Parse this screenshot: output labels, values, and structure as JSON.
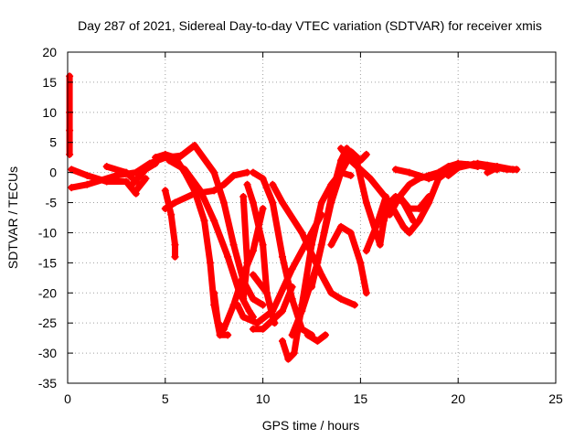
{
  "chart_data": {
    "type": "scatter",
    "title": "Day 287 of 2021, Sidereal Day-to-day VTEC variation (SDTVAR) for receiver xmis",
    "xlabel": "GPS time / hours",
    "ylabel": "SDTVAR / TECUs",
    "xlim": [
      0,
      25
    ],
    "ylim": [
      -35,
      20
    ],
    "xticks": [
      "0",
      "5",
      "10",
      "15",
      "20",
      "25"
    ],
    "yticks": [
      "20",
      "15",
      "10",
      "5",
      "0",
      "-5",
      "-10",
      "-15",
      "-20",
      "-25",
      "-30",
      "-35"
    ],
    "grid": true,
    "marker": "+",
    "color": "#ff0000",
    "series": [
      {
        "name": "arc-1",
        "points": [
          [
            0.1,
            16
          ],
          [
            0.1,
            10
          ],
          [
            0.1,
            7
          ],
          [
            0.1,
            3
          ]
        ]
      },
      {
        "name": "arc-2",
        "points": [
          [
            0.2,
            0.5
          ],
          [
            1.0,
            -0.5
          ],
          [
            2.0,
            -1.5
          ],
          [
            3.0,
            -1.5
          ],
          [
            3.5,
            -3.5
          ]
        ]
      },
      {
        "name": "arc-3",
        "points": [
          [
            0.2,
            -2.5
          ],
          [
            1.0,
            -2
          ],
          [
            2.5,
            -0.5
          ],
          [
            3.5,
            0
          ],
          [
            4.2,
            1.5
          ],
          [
            5.0,
            2.5
          ],
          [
            5.8,
            2.8
          ]
        ]
      },
      {
        "name": "arc-4",
        "points": [
          [
            2.0,
            1
          ],
          [
            3.0,
            0
          ],
          [
            3.5,
            -1.5
          ]
        ]
      },
      {
        "name": "arc-5",
        "points": [
          [
            3.3,
            -2
          ],
          [
            4.0,
            0.5
          ],
          [
            4.5,
            1.5
          ]
        ]
      },
      {
        "name": "arc-6",
        "points": [
          [
            3.5,
            -3
          ],
          [
            4.0,
            -1
          ]
        ]
      },
      {
        "name": "arc-7",
        "points": [
          [
            4.5,
            2.5
          ],
          [
            5.0,
            3
          ],
          [
            5.5,
            2.5
          ],
          [
            6.0,
            0
          ],
          [
            6.5,
            -3
          ],
          [
            7.0,
            -8
          ],
          [
            7.3,
            -15
          ],
          [
            7.5,
            -22
          ],
          [
            7.8,
            -27
          ],
          [
            8.2,
            -27
          ]
        ]
      },
      {
        "name": "arc-8",
        "points": [
          [
            5.2,
            2
          ],
          [
            6.0,
            0.5
          ],
          [
            6.8,
            -3
          ],
          [
            7.5,
            -8
          ],
          [
            8.2,
            -14
          ],
          [
            8.8,
            -20
          ],
          [
            9.3,
            -23
          ],
          [
            9.5,
            -24
          ]
        ]
      },
      {
        "name": "arc-9",
        "points": [
          [
            5.5,
            2
          ],
          [
            6.5,
            4.5
          ],
          [
            7.5,
            0
          ],
          [
            8.0,
            -5
          ],
          [
            8.5,
            -12
          ],
          [
            9.0,
            -18
          ],
          [
            9.5,
            -21
          ],
          [
            10.0,
            -22
          ]
        ]
      },
      {
        "name": "arc-10",
        "points": [
          [
            5.0,
            -6
          ],
          [
            5.5,
            -5
          ],
          [
            6.5,
            -3.5
          ],
          [
            7.5,
            -3
          ],
          [
            8.0,
            -2
          ],
          [
            8.5,
            -0.5
          ],
          [
            9.2,
            0
          ]
        ]
      },
      {
        "name": "arc-11",
        "points": [
          [
            5.0,
            -3
          ],
          [
            5.3,
            -7
          ],
          [
            5.5,
            -12
          ],
          [
            5.5,
            -14
          ]
        ]
      },
      {
        "name": "arc-12",
        "points": [
          [
            7.5,
            -20
          ],
          [
            7.7,
            -25
          ],
          [
            8.0,
            -26
          ],
          [
            8.5,
            -22
          ],
          [
            9.0,
            -17
          ],
          [
            9.5,
            -13
          ],
          [
            10.0,
            -6
          ]
        ]
      },
      {
        "name": "arc-13",
        "points": [
          [
            9.0,
            -4
          ],
          [
            9.2,
            -15
          ],
          [
            9.0,
            -21
          ]
        ]
      },
      {
        "name": "arc-14",
        "points": [
          [
            9.2,
            -2
          ],
          [
            9.5,
            -5
          ],
          [
            10.0,
            -12
          ],
          [
            10.2,
            -20
          ],
          [
            10.5,
            -24
          ],
          [
            10.6,
            -25
          ]
        ]
      },
      {
        "name": "arc-15",
        "points": [
          [
            9.5,
            -17
          ],
          [
            10.2,
            -20
          ]
        ]
      },
      {
        "name": "arc-16",
        "points": [
          [
            9.5,
            0
          ],
          [
            10.0,
            -1
          ],
          [
            10.5,
            -5
          ],
          [
            11.0,
            -14
          ],
          [
            11.5,
            -21
          ],
          [
            12.0,
            -26
          ],
          [
            12.5,
            -27
          ]
        ]
      },
      {
        "name": "arc-17",
        "points": [
          [
            8.7,
            -22
          ],
          [
            9.0,
            -24
          ],
          [
            9.7,
            -25
          ],
          [
            10.5,
            -23
          ],
          [
            11.5,
            -16
          ],
          [
            12.5,
            -10
          ],
          [
            13.0,
            -7
          ]
        ]
      },
      {
        "name": "arc-18",
        "points": [
          [
            9.5,
            -26
          ],
          [
            10.0,
            -26
          ],
          [
            11.0,
            -23
          ],
          [
            11.5,
            -19
          ]
        ]
      },
      {
        "name": "arc-19",
        "points": [
          [
            11.0,
            -28
          ],
          [
            11.3,
            -31
          ],
          [
            11.6,
            -30
          ],
          [
            12.0,
            -22
          ],
          [
            12.5,
            -12
          ],
          [
            13.0,
            -5
          ],
          [
            13.5,
            -2
          ],
          [
            14.0,
            0
          ],
          [
            14.5,
            -0.5
          ]
        ]
      },
      {
        "name": "arc-20",
        "points": [
          [
            11.5,
            -27
          ],
          [
            12.0,
            -23
          ],
          [
            12.8,
            -15
          ],
          [
            13.5,
            -5
          ],
          [
            14.0,
            0
          ],
          [
            14.5,
            3
          ]
        ]
      },
      {
        "name": "arc-21",
        "points": [
          [
            10.5,
            -2
          ],
          [
            11.0,
            -5
          ],
          [
            12.0,
            -10
          ],
          [
            13.0,
            -17
          ],
          [
            13.5,
            -20
          ],
          [
            14.0,
            -21
          ],
          [
            14.7,
            -22
          ]
        ]
      },
      {
        "name": "arc-22",
        "points": [
          [
            12.3,
            -27
          ],
          [
            12.8,
            -28
          ],
          [
            13.2,
            -27
          ]
        ]
      },
      {
        "name": "arc-23",
        "points": [
          [
            12.5,
            -19
          ],
          [
            13.0,
            -12
          ],
          [
            13.5,
            -4
          ],
          [
            14.0,
            2
          ],
          [
            14.3,
            4
          ],
          [
            14.8,
            2
          ],
          [
            15.3,
            -5
          ],
          [
            15.8,
            -10
          ],
          [
            16.0,
            -12
          ],
          [
            16.2,
            -8
          ],
          [
            16.5,
            -5
          ],
          [
            16.8,
            -4
          ],
          [
            17.2,
            -5
          ],
          [
            17.7,
            -8
          ]
        ]
      },
      {
        "name": "arc-24",
        "points": [
          [
            14.0,
            4
          ],
          [
            14.5,
            2
          ],
          [
            15.5,
            -1
          ],
          [
            16.5,
            -5
          ],
          [
            17.2,
            -9
          ],
          [
            17.5,
            -10
          ],
          [
            18.0,
            -8
          ],
          [
            18.5,
            -5
          ],
          [
            19.0,
            -1
          ],
          [
            20.0,
            1.5
          ],
          [
            21.0,
            1.2
          ],
          [
            22.0,
            0.5
          ]
        ]
      },
      {
        "name": "arc-25",
        "points": [
          [
            13.5,
            -12
          ],
          [
            14.0,
            -9
          ],
          [
            14.5,
            -10
          ],
          [
            15.0,
            -15
          ],
          [
            15.3,
            -20
          ]
        ]
      },
      {
        "name": "arc-26",
        "points": [
          [
            14.5,
            3.5
          ],
          [
            15.0,
            2
          ],
          [
            15.3,
            3
          ]
        ]
      },
      {
        "name": "arc-27",
        "points": [
          [
            15.3,
            -13
          ],
          [
            15.8,
            -9
          ],
          [
            16.3,
            -4
          ]
        ]
      },
      {
        "name": "arc-28",
        "points": [
          [
            16.5,
            -7
          ],
          [
            17.0,
            -4
          ],
          [
            17.5,
            -2
          ],
          [
            18.0,
            -1
          ],
          [
            18.5,
            -0.5
          ],
          [
            19.0,
            0
          ],
          [
            19.5,
            1
          ],
          [
            20.0,
            1.5
          ],
          [
            20.5,
            1.3
          ],
          [
            21.0,
            1
          ]
        ]
      },
      {
        "name": "arc-29",
        "points": [
          [
            16.8,
            0.5
          ],
          [
            17.5,
            0
          ],
          [
            18.5,
            -1
          ],
          [
            19.0,
            -0.5
          ],
          [
            19.5,
            0.5
          ],
          [
            20.0,
            1
          ],
          [
            21.0,
            1.5
          ],
          [
            22.0,
            1
          ],
          [
            22.8,
            0.5
          ]
        ]
      },
      {
        "name": "arc-30",
        "points": [
          [
            19.5,
            -0.5
          ],
          [
            20.0,
            0.8
          ],
          [
            20.8,
            1.4
          ],
          [
            21.5,
            1.2
          ]
        ]
      },
      {
        "name": "arc-31",
        "points": [
          [
            21.5,
            0
          ],
          [
            22.0,
            0.8
          ],
          [
            22.5,
            0.5
          ],
          [
            23.0,
            0.5
          ]
        ]
      },
      {
        "name": "arc-32",
        "points": [
          [
            17.0,
            -4
          ],
          [
            17.5,
            -6
          ],
          [
            18.0,
            -6
          ],
          [
            18.5,
            -4
          ]
        ]
      }
    ]
  }
}
